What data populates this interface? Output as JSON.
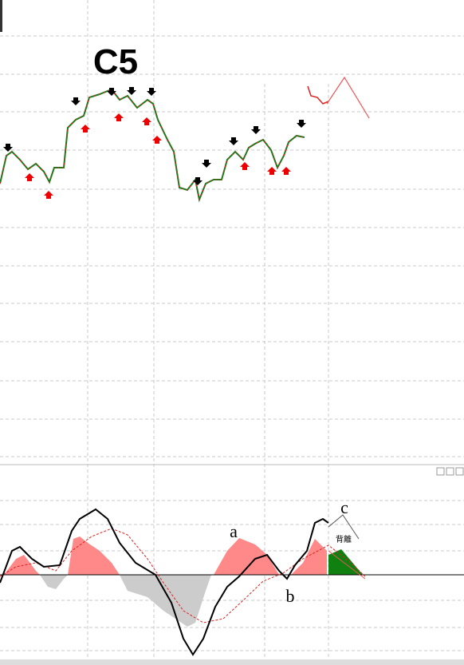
{
  "labels": {
    "wave": "C5",
    "a": "a",
    "b": "b",
    "c": "c",
    "divergence": "背離"
  }
}
